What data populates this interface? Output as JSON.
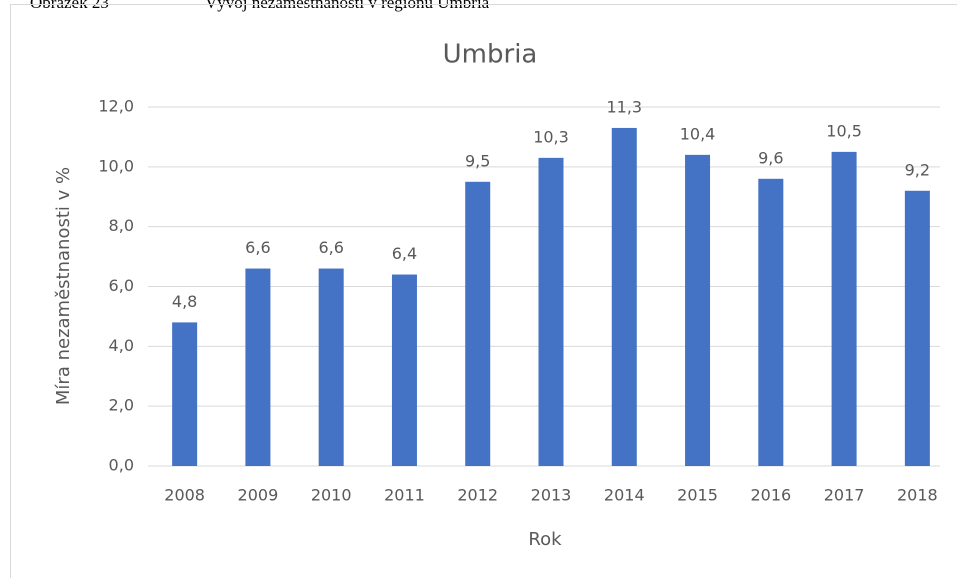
{
  "caption": {
    "number": "Obrázek 23",
    "text": "Vývoj nezaměstnanosti v regionu Umbria"
  },
  "chart_data": {
    "type": "bar",
    "title": "Umbria",
    "x_label": "Rok",
    "y_label": "Míra nezaměstnanosti v %",
    "categories": [
      "2008",
      "2009",
      "2010",
      "2011",
      "2012",
      "2013",
      "2014",
      "2015",
      "2016",
      "2017",
      "2018"
    ],
    "values": [
      4.8,
      6.6,
      6.6,
      6.4,
      9.5,
      10.3,
      11.3,
      10.4,
      9.6,
      10.5,
      9.2
    ],
    "value_labels": [
      "4,8",
      "6,6",
      "6,6",
      "6,4",
      "9,5",
      "10,3",
      "11,3",
      "10,4",
      "9,6",
      "10,5",
      "9,2"
    ],
    "color": "#4472c4",
    "ylim": [
      0,
      12
    ],
    "yticks": [
      {
        "value": 0,
        "label": "0,0"
      },
      {
        "value": 2,
        "label": "2,0"
      },
      {
        "value": 4,
        "label": "4,0"
      },
      {
        "value": 6,
        "label": "6,0"
      },
      {
        "value": 8,
        "label": "8,0"
      },
      {
        "value": 10,
        "label": "10,0"
      },
      {
        "value": 12,
        "label": "12,0"
      }
    ],
    "grid": true
  }
}
